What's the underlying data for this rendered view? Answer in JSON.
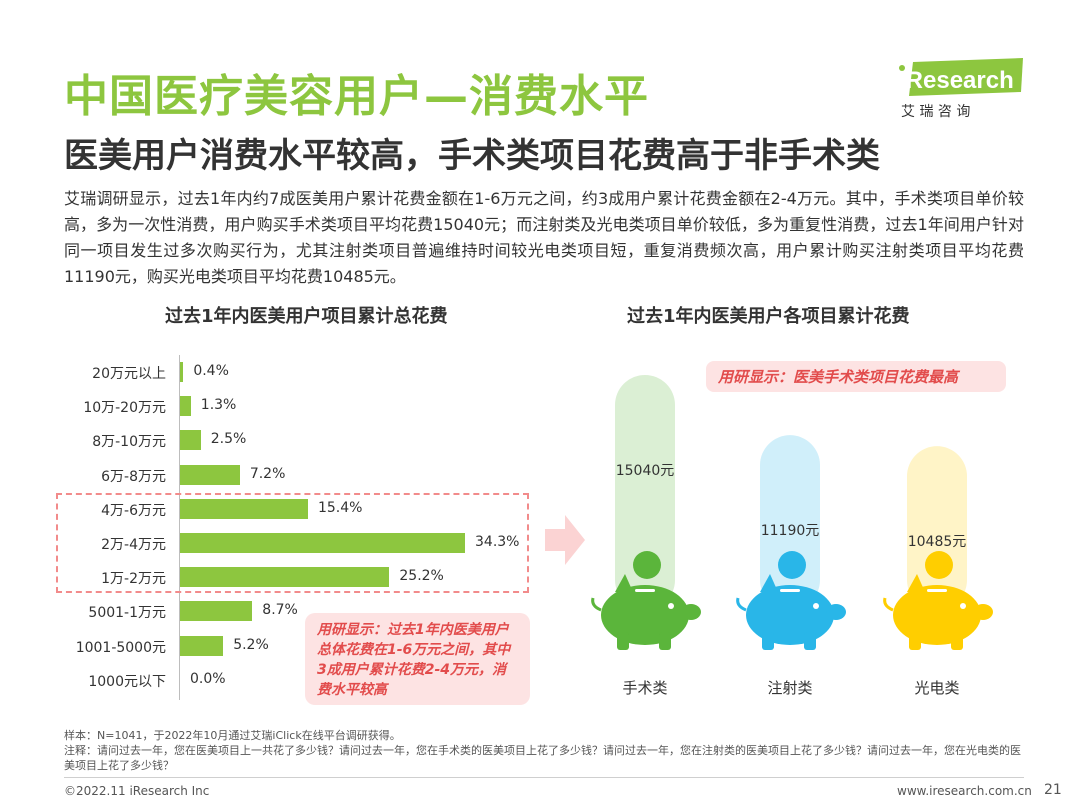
{
  "header": {
    "title": "中国医疗美容用户—消费水平",
    "subtitle": "医美用户消费水平较高，手术类项目花费高于非手术类",
    "logo_text": "iResearch",
    "logo_sub": "艾 瑞 咨 询"
  },
  "summary": "艾瑞调研显示，过去1年内约7成医美用户累计花费金额在1-6万元之间，约3成用户累计花费金额在2-4万元。其中，手术类项目单价较高，多为一次性消费，用户购买手术类项目平均花费15040元；而注射类及光电类项目单价较低，多为重复性消费，过去1年间用户针对同一项目发生过多次购买行为，尤其注射类项目普遍维持时间较光电类项目短，重复消费频次高，用户累计购买注射类项目平均花费11190元，购买光电类项目平均花费10485元。",
  "chart_data": [
    {
      "type": "bar",
      "orientation": "horizontal",
      "title": "过去1年内医美用户项目累计总花费",
      "categories": [
        "20万元以上",
        "10万-20万元",
        "8万-10万元",
        "6万-8万元",
        "4万-6万元",
        "2万-4万元",
        "1万-2万元",
        "5001-1万元",
        "1001-5000元",
        "1000元以下"
      ],
      "values": [
        0.4,
        1.3,
        2.5,
        7.2,
        15.4,
        34.3,
        25.2,
        8.7,
        5.2,
        0.0
      ],
      "value_labels": [
        "0.4%",
        "1.3%",
        "2.5%",
        "7.2%",
        "15.4%",
        "34.3%",
        "25.2%",
        "8.7%",
        "5.2%",
        "0.0%"
      ],
      "highlighted_categories": [
        "4万-6万元",
        "2万-4万元",
        "1万-2万元"
      ],
      "bar_color": "#8dc63f",
      "annotation": "用研显示：过去1年内医美用户总体花费在1-6万元之间，其中3成用户累计花费2-4万元，消费水平较高"
    },
    {
      "type": "bar",
      "orientation": "vertical",
      "title": "过去1年内医美用户各项目累计花费",
      "categories": [
        "手术类",
        "注射类",
        "光电类"
      ],
      "values": [
        15040,
        11190,
        10485
      ],
      "value_labels": [
        "15040元",
        "11190元",
        "10485元"
      ],
      "colors": [
        "#5bb53b",
        "#29b6e8",
        "#ffce00"
      ],
      "annotation": "用研显示：医美手术类项目花费最高"
    }
  ],
  "footnote": {
    "sample": "样本：N=1041，于2022年10月通过艾瑞iClick在线平台调研获得。",
    "note": "注释：请问过去一年，您在医美项目上一共花了多少钱？请问过去一年，您在手术类的医美项目上花了多少钱？请问过去一年，您在注射类的医美项目上花了多少钱？请问过去一年，您在光电类的医美项目上花了多少钱？"
  },
  "footer": {
    "copyright": "©2022.11 iResearch Inc",
    "website": "www.iresearch.com.cn",
    "page": "21"
  },
  "colors": {
    "accent_green": "#8dc63f",
    "highlight_red": "#e24c4c",
    "highlight_bg": "#fde3e3"
  }
}
